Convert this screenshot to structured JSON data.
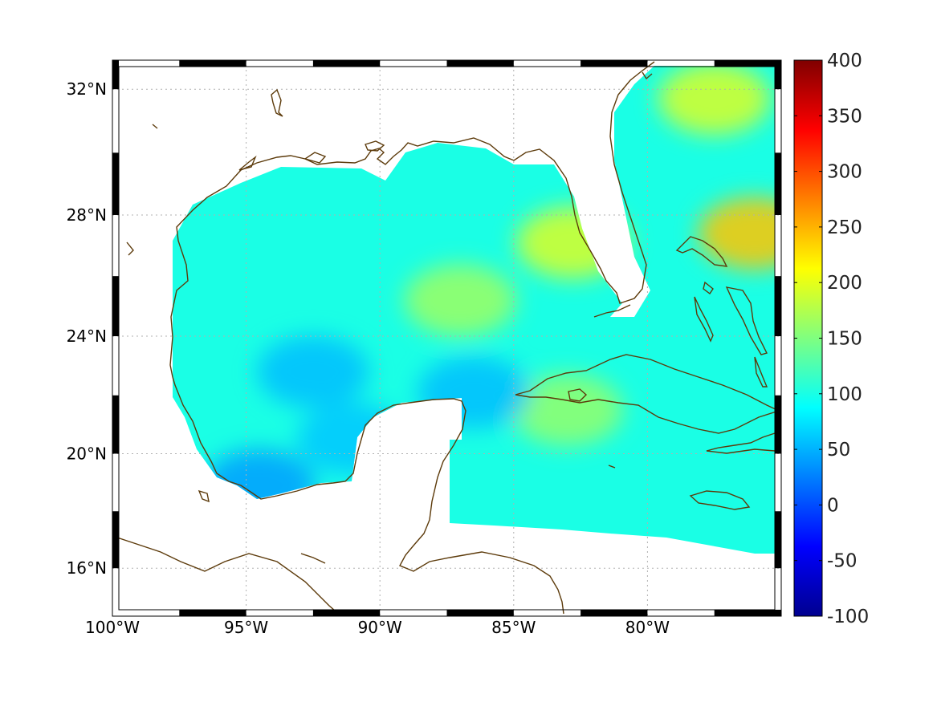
{
  "chart_data": {
    "type": "heatmap",
    "projection": "mercator",
    "region": "Gulf of Mexico / Caribbean",
    "lon_range": [
      -100,
      -75
    ],
    "lat_range": [
      14.3,
      32.9
    ],
    "xtick_labels": [
      "100°W",
      "95°W",
      "90°W",
      "85°W",
      "80°W"
    ],
    "xtick_values": [
      -100,
      -95,
      -90,
      -85,
      -80
    ],
    "ytick_labels": [
      "32°N",
      "28°N",
      "24°N",
      "20°N",
      "16°N"
    ],
    "ytick_values": [
      32,
      28,
      24,
      20,
      16
    ],
    "grid": true,
    "grid_style": "dotted",
    "colorbar": {
      "position": "right",
      "colormap": "jet",
      "range": [
        -100,
        400
      ],
      "tick_labels": [
        "400",
        "350",
        "300",
        "250",
        "200",
        "150",
        "100",
        "50",
        "0",
        "-50",
        "-100"
      ],
      "tick_values": [
        400,
        350,
        300,
        250,
        200,
        150,
        100,
        50,
        0,
        -50,
        -100
      ]
    },
    "field_summary": {
      "typical_range": [
        40,
        190
      ],
      "background_level": 100,
      "high_areas": [
        {
          "lon": -76.0,
          "lat": 27.4,
          "value": 240
        },
        {
          "lon": -77.5,
          "lat": 31.7,
          "value": 195
        },
        {
          "lon": -82.8,
          "lat": 27.1,
          "value": 195
        },
        {
          "lon": -87.0,
          "lat": 25.2,
          "value": 165
        },
        {
          "lon": -83.0,
          "lat": 21.5,
          "value": 160
        }
      ],
      "low_areas": [
        {
          "lon": -94.5,
          "lat": 18.9,
          "value": 40
        },
        {
          "lon": -92.5,
          "lat": 22.8,
          "value": 55
        },
        {
          "lon": -86.5,
          "lat": 22.1,
          "value": 55
        },
        {
          "lon": -91.0,
          "lat": 20.5,
          "value": 60
        }
      ]
    },
    "colors": {
      "coastline": "#5c3a0a",
      "frame": "#000000",
      "grid": "#b0b0b0"
    }
  }
}
